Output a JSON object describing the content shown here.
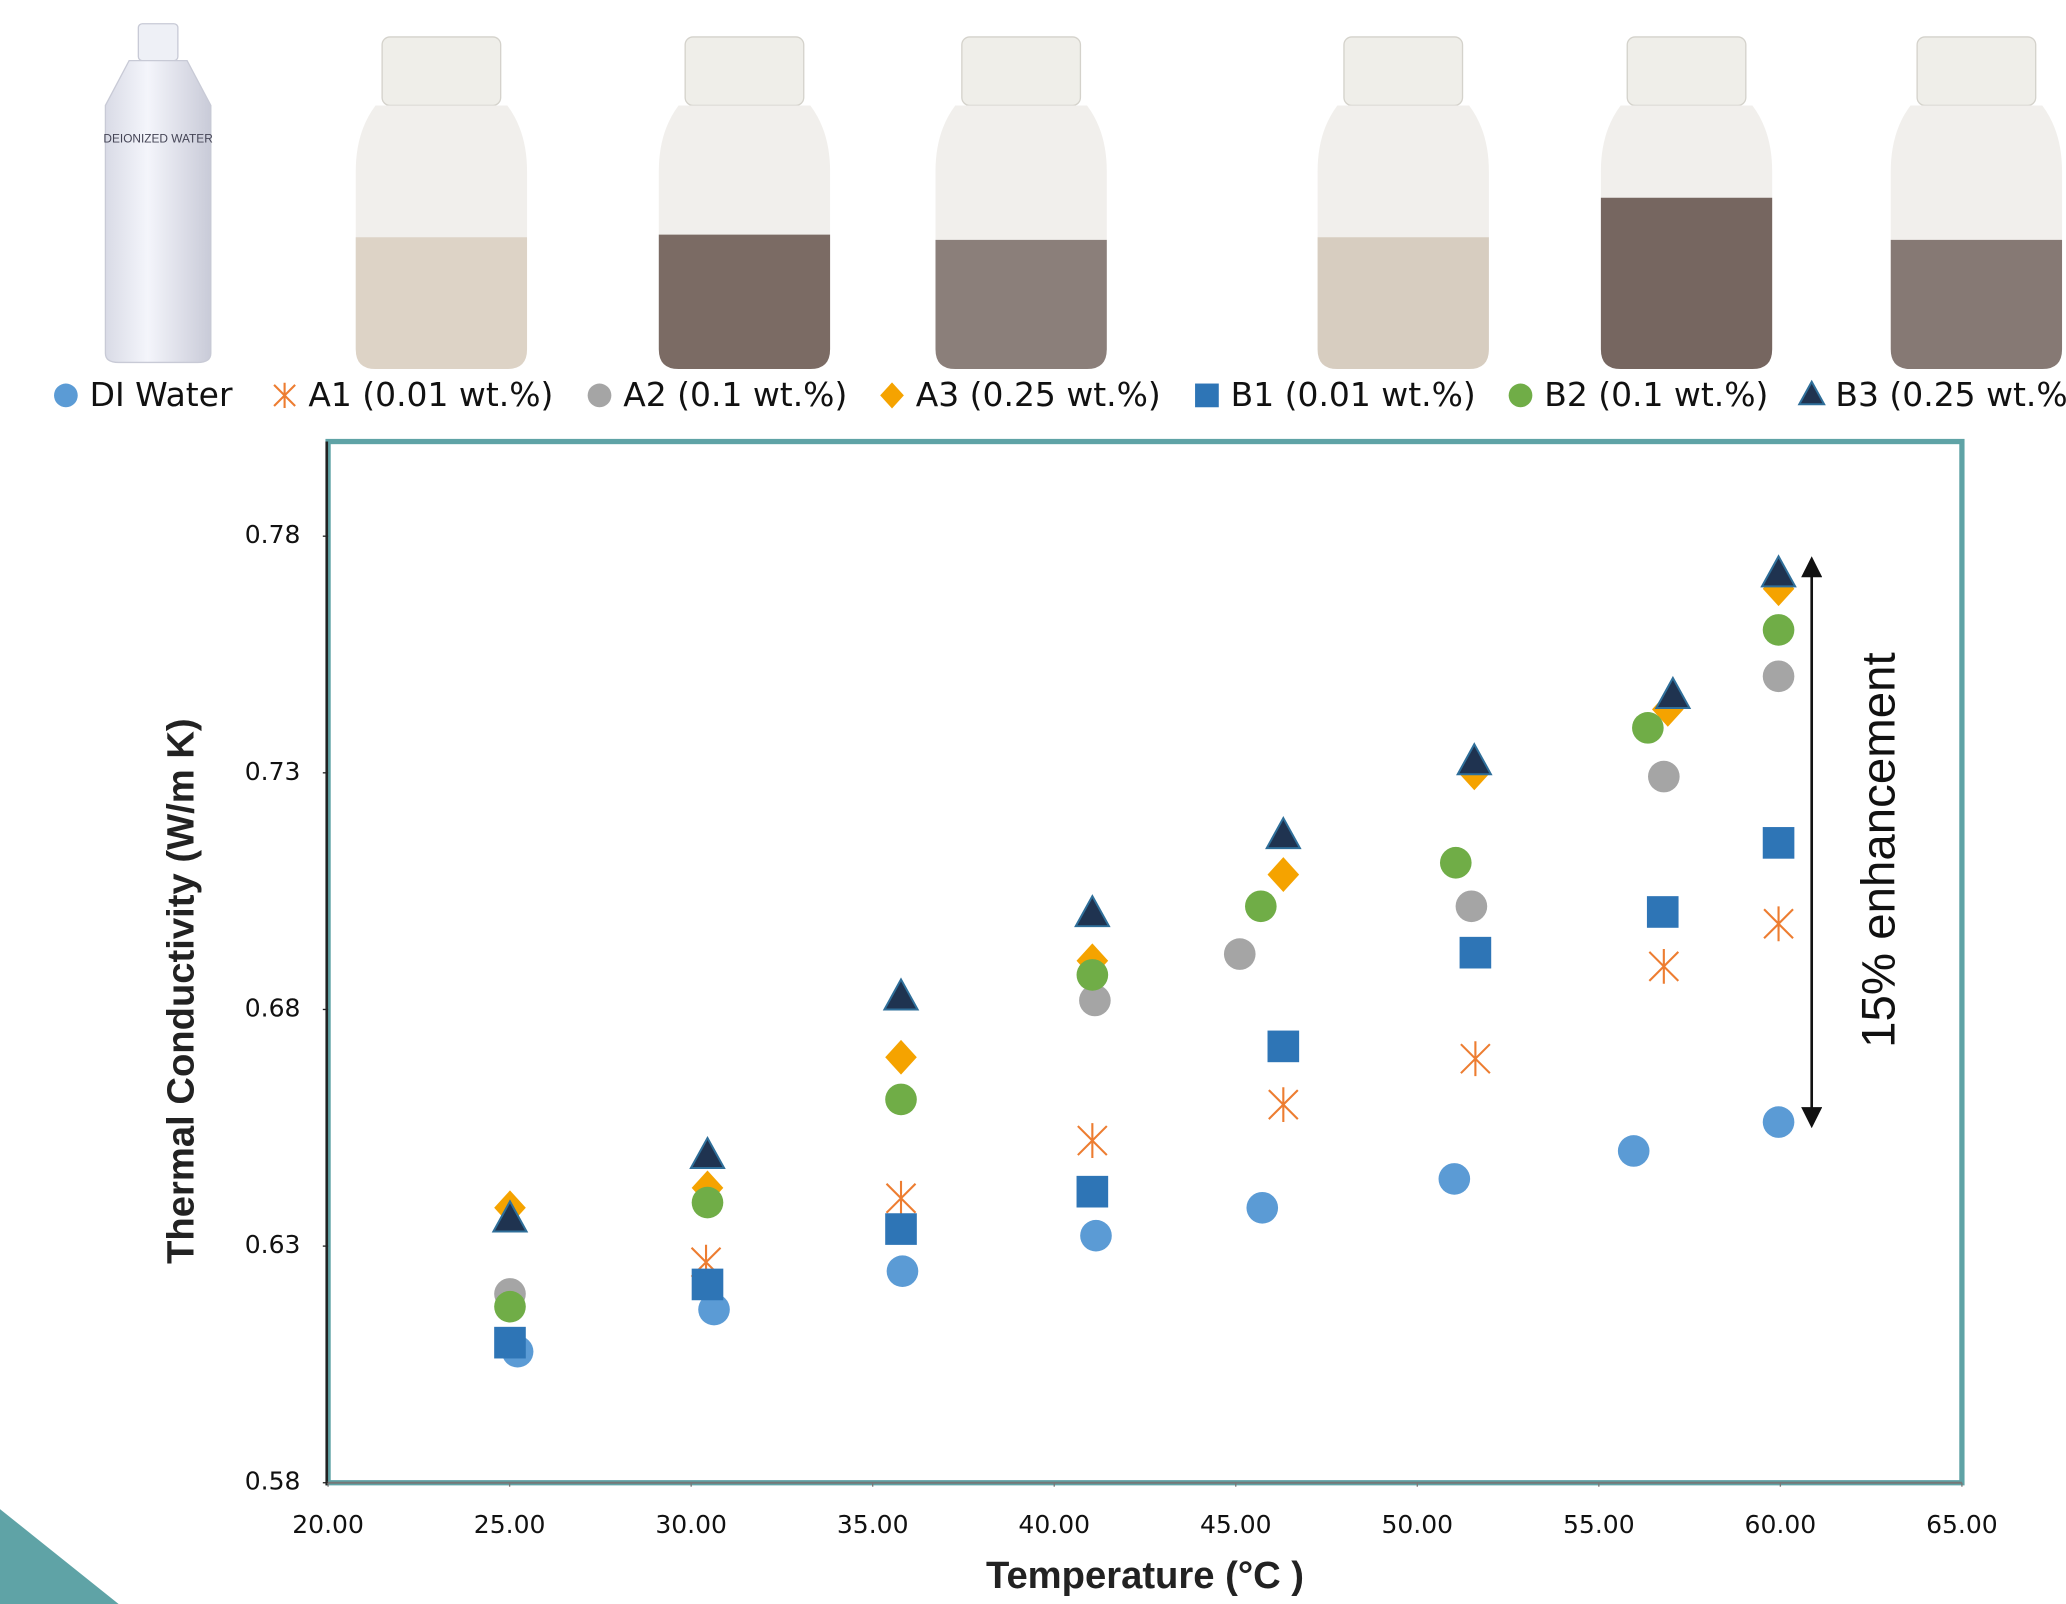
{
  "chart_data": {
    "type": "scatter",
    "bottle_label": "DEIONIZED WATER",
    "xlabel": "Temperature (°C )",
    "ylabel": "Thermal Conductivity (W/m K)",
    "annotation": "15% enhancement",
    "xlim": [
      20,
      65
    ],
    "xticks": [
      {
        "value": 20,
        "label": "20.00"
      },
      {
        "value": 25,
        "label": "25.00"
      },
      {
        "value": 30,
        "label": "30.00"
      },
      {
        "value": 35,
        "label": "35.00"
      },
      {
        "value": 40,
        "label": "40.00"
      },
      {
        "value": 45,
        "label": "45.00"
      },
      {
        "value": 50,
        "label": "50.00"
      },
      {
        "value": 55,
        "label": "55.00"
      },
      {
        "value": 60,
        "label": "60.00"
      },
      {
        "value": 65,
        "label": "65.00"
      }
    ],
    "ylim": [
      0.58,
      0.8
    ],
    "yticks": [
      0.58,
      0.63,
      0.68,
      0.73,
      0.78
    ],
    "grid": false,
    "series": [
      {
        "name": "DI Water",
        "marker": "circle",
        "color": "#5b9bd5",
        "x": [
          25.22,
          30.63,
          35.82,
          41.15,
          45.73,
          51.02,
          55.96,
          59.95
        ],
        "values": [
          0.6077,
          0.6166,
          0.6247,
          0.6322,
          0.6381,
          0.6442,
          0.6501,
          0.6562
        ]
      },
      {
        "name": "A1 (0.01 wt.%)",
        "marker": "asterisk",
        "color": "#ed7d31",
        "x": [
          30.41,
          35.78,
          41.05,
          46.31,
          51.6,
          56.79,
          59.95
        ],
        "values": [
          0.6266,
          0.6401,
          0.6523,
          0.6599,
          0.6696,
          0.6891,
          0.6981
        ]
      },
      {
        "name": "A2 (0.1 wt.%)",
        "marker": "circle",
        "color": "#a5a5a5",
        "x": [
          25.01,
          41.12,
          45.11,
          51.49,
          56.79,
          59.95
        ],
        "values": [
          0.6199,
          0.6819,
          0.6917,
          0.7018,
          0.7292,
          0.7504
        ]
      },
      {
        "name": "A3 (0.25 wt.%)",
        "marker": "diamond",
        "color": "#f5a300",
        "x": [
          25.01,
          30.45,
          35.78,
          41.05,
          46.31,
          51.57,
          56.9,
          59.95
        ],
        "values": [
          0.6381,
          0.6423,
          0.6699,
          0.6903,
          0.7085,
          0.73,
          0.7434,
          0.7689
        ]
      },
      {
        "name": "B1 (0.01 wt.%)",
        "marker": "square",
        "color": "#2e75b6",
        "x": [
          25.01,
          30.45,
          35.78,
          41.05,
          46.31,
          51.6,
          56.76,
          59.95
        ],
        "values": [
          0.6096,
          0.6219,
          0.6336,
          0.6415,
          0.6722,
          0.692,
          0.7006,
          0.7152
        ]
      },
      {
        "name": "B2 (0.1 wt.%)",
        "marker": "circle",
        "color": "#70ad47",
        "x": [
          25.01,
          30.45,
          35.78,
          41.05,
          45.69,
          51.06,
          56.35,
          59.95
        ],
        "values": [
          0.6172,
          0.6392,
          0.661,
          0.6873,
          0.7018,
          0.711,
          0.7395,
          0.7602
        ]
      },
      {
        "name": "B3 (0.25 wt.%)",
        "marker": "triangle",
        "color": "#1f3350",
        "x": [
          25.01,
          30.45,
          35.78,
          41.05,
          46.31,
          51.57,
          57.04,
          59.95
        ],
        "values": [
          0.6356,
          0.649,
          0.6825,
          0.7001,
          0.7166,
          0.7322,
          0.7462,
          0.7719
        ]
      }
    ]
  }
}
